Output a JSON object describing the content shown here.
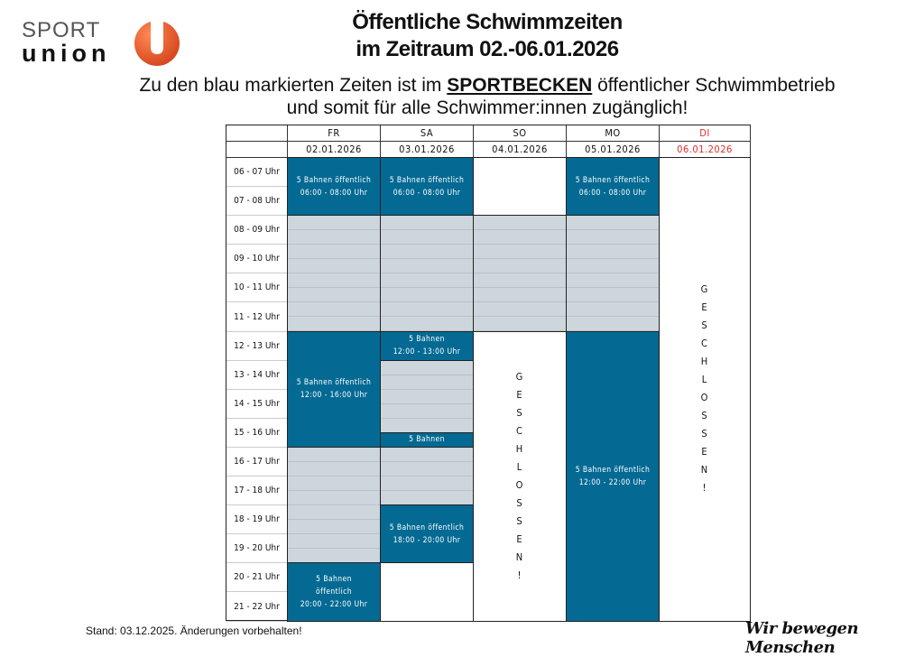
{
  "logo": {
    "line1": "SPORT",
    "line2": "union",
    "accent": "#e8542a"
  },
  "title": {
    "line1": "Öffentliche Schwimmzeiten",
    "line2": "im Zeitraum 02.-06.01.2026"
  },
  "subtitle": {
    "pre": "Zu den blau markierten Zeiten ist im ",
    "highlight": "SPORTBECKEN",
    "post": " öffentlicher Schwimmbetrieb",
    "line2": "und somit für alle Schwimmer:innen zugänglich!"
  },
  "colors": {
    "public": "#046a93",
    "other": "#cdd6dd",
    "closed_day": "#e32b2b"
  },
  "days": [
    {
      "name": "FR",
      "date": "02.01.2026",
      "highlight": false
    },
    {
      "name": "SA",
      "date": "03.01.2026",
      "highlight": false
    },
    {
      "name": "SO",
      "date": "04.01.2026",
      "highlight": false
    },
    {
      "name": "MO",
      "date": "05.01.2026",
      "highlight": false
    },
    {
      "name": "DI",
      "date": "06.01.2026",
      "highlight": true
    }
  ],
  "hours": [
    "06 - 07 Uhr",
    "07 - 08 Uhr",
    "08 - 09 Uhr",
    "09 - 10 Uhr",
    "10 - 11 Uhr",
    "11 - 12 Uhr",
    "12 - 13 Uhr",
    "13 - 14 Uhr",
    "14 - 15 Uhr",
    "15 - 16 Uhr",
    "16 - 17 Uhr",
    "17 - 18 Uhr",
    "18 - 19 Uhr",
    "19 - 20 Uhr",
    "20 - 21 Uhr",
    "21 - 22 Uhr"
  ],
  "blocks": [
    {
      "day": 0,
      "start": 6,
      "end": 8,
      "type": "blue",
      "lines": [
        "5 Bahnen öffentlich",
        "06:00 - 08:00 Uhr"
      ]
    },
    {
      "day": 0,
      "start": 8,
      "end": 12,
      "type": "gray",
      "lines": []
    },
    {
      "day": 0,
      "start": 12,
      "end": 16,
      "type": "blue",
      "lines": [
        "5 Bahnen öffentlich",
        "12:00 - 16:00 Uhr"
      ]
    },
    {
      "day": 0,
      "start": 16,
      "end": 20,
      "type": "gray",
      "lines": []
    },
    {
      "day": 0,
      "start": 20,
      "end": 22,
      "type": "blue",
      "lines": [
        "5 Bahnen",
        "öffentlich",
        "20:00 - 22:00 Uhr"
      ]
    },
    {
      "day": 1,
      "start": 6,
      "end": 8,
      "type": "blue",
      "lines": [
        "5 Bahnen öffentlich",
        "06:00 - 08:00 Uhr"
      ]
    },
    {
      "day": 1,
      "start": 8,
      "end": 12,
      "type": "gray",
      "lines": []
    },
    {
      "day": 1,
      "start": 12,
      "end": 13,
      "type": "blue",
      "lines": [
        "5 Bahnen",
        "12:00 - 13:00 Uhr"
      ]
    },
    {
      "day": 1,
      "start": 13,
      "end": 15.5,
      "type": "gray",
      "lines": []
    },
    {
      "day": 1,
      "start": 15.5,
      "end": 16,
      "type": "blue",
      "lines": [
        "5 Bahnen"
      ]
    },
    {
      "day": 1,
      "start": 16,
      "end": 18,
      "type": "gray",
      "lines": []
    },
    {
      "day": 1,
      "start": 18,
      "end": 20,
      "type": "blue",
      "lines": [
        "5 Bahnen öffentlich",
        "18:00 - 20:00 Uhr"
      ]
    },
    {
      "day": 1,
      "start": 20,
      "end": 22,
      "type": "white",
      "lines": []
    },
    {
      "day": 2,
      "start": 6,
      "end": 8,
      "type": "white",
      "lines": []
    },
    {
      "day": 2,
      "start": 8,
      "end": 12,
      "type": "gray",
      "lines": []
    },
    {
      "day": 2,
      "start": 12,
      "end": 22,
      "type": "closed",
      "lines": [
        "G",
        "E",
        "S",
        "C",
        "H",
        "L",
        "O",
        "S",
        "S",
        "E",
        "N",
        "!"
      ]
    },
    {
      "day": 3,
      "start": 6,
      "end": 8,
      "type": "blue",
      "lines": [
        "5 Bahnen öffentlich",
        "06:00 - 08:00 Uhr"
      ]
    },
    {
      "day": 3,
      "start": 8,
      "end": 12,
      "type": "gray",
      "lines": []
    },
    {
      "day": 3,
      "start": 12,
      "end": 22,
      "type": "blue",
      "lines": [
        "5 Bahnen öffentlich",
        "12:00 - 22:00 Uhr"
      ]
    },
    {
      "day": 4,
      "start": 6,
      "end": 22,
      "type": "closed",
      "lines": [
        "G",
        "E",
        "S",
        "C",
        "H",
        "L",
        "O",
        "S",
        "S",
        "E",
        "N",
        "!"
      ]
    }
  ],
  "footer": "Stand: 03.12.2025. Änderungen vorbehalten!",
  "slogan": "Wir bewegen Menschen"
}
